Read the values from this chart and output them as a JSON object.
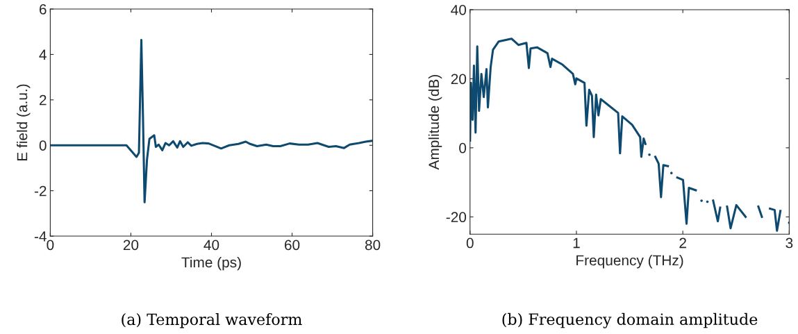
{
  "chart_data": [
    {
      "type": "line",
      "xlabel": "Time (ps)",
      "ylabel": "E field (a.u.)",
      "annotations": [
        "(a) Temporal waveform"
      ],
      "xlim": [
        0,
        80
      ],
      "ylim": [
        -4,
        6
      ],
      "xticks": [
        0,
        20,
        40,
        60,
        80
      ],
      "yticks": [
        {
          "value": -4,
          "label": "-4"
        },
        {
          "value": -2,
          "label": "-2"
        },
        0,
        2,
        4,
        6
      ],
      "grid": false,
      "series": [
        {
          "color": "#0e4a70",
          "x": [
            0,
            18.9,
            21.4,
            22.0,
            22.6,
            23.0,
            23.4,
            24.0,
            24.6,
            25.8,
            26.2,
            26.9,
            27.8,
            28.6,
            29.5,
            30.5,
            31.5,
            32.2,
            33.0,
            34.1,
            35.0,
            36.4,
            37.8,
            39.3,
            40.7,
            42.4,
            44.4,
            46.7,
            48.5,
            49.6,
            51.3,
            53.6,
            55.3,
            57.1,
            59.4,
            61.7,
            64.0,
            66.3,
            69.1,
            70.9,
            72.9,
            74.3,
            76.6,
            78.3,
            80
          ],
          "values": [
            0,
            0,
            -0.51,
            -0.33,
            4.64,
            1.3,
            -2.51,
            -0.63,
            0.28,
            0.44,
            -0.07,
            0.03,
            -0.22,
            0.1,
            0,
            0.18,
            -0.1,
            0.18,
            -0.07,
            0.13,
            -0.02,
            0.06,
            0.1,
            0.08,
            -0.02,
            -0.14,
            0,
            0.06,
            0.16,
            0.06,
            -0.04,
            0.03,
            -0.04,
            -0.04,
            0.08,
            0.03,
            0.03,
            0.1,
            -0.07,
            -0.04,
            -0.12,
            0.03,
            0.1,
            0.16,
            0.2
          ]
        }
      ]
    },
    {
      "type": "line",
      "xlabel": "Frequency (THz)",
      "ylabel": "Amplitude (dB)",
      "annotations": [
        "(b) Frequency domain amplitude"
      ],
      "xlim": [
        0,
        3
      ],
      "ylim": [
        -25,
        40
      ],
      "xticks": [
        0,
        1,
        2,
        3
      ],
      "yticks": [
        {
          "value": -20,
          "label": "-20"
        },
        0,
        20,
        40
      ],
      "grid": false,
      "series": [
        {
          "color": "#0e4a70",
          "x": [
            0,
            0.009,
            0.024,
            0.037,
            0.052,
            0.068,
            0.085,
            0.107,
            0.129,
            0.155,
            0.168,
            0.194,
            0.216,
            0.27,
            0.39,
            0.455,
            0.53,
            0.553,
            0.569,
            0.63,
            0.728,
            0.756,
            0.771,
            0.869,
            0.967,
            0.989,
            1.0,
            1.076,
            1.094,
            1.12,
            1.146,
            1.163,
            1.185,
            1.207,
            1.229,
            1.392,
            1.41,
            1.431,
            1.523,
            1.599,
            1.61,
            1.632,
            1.649,
            1.664,
            1.686,
            1.715,
            1.741,
            1.773,
            1.795,
            1.817,
            1.86,
            1.871,
            1.893,
            1.919,
            1.948,
            2.002,
            2.035,
            2.057,
            2.122,
            2.155,
            2.176,
            2.194,
            2.231,
            2.253,
            2.285,
            2.329,
            2.351,
            2.383,
            2.416,
            2.449,
            2.503,
            2.59,
            2.63,
            2.678,
            2.71,
            2.743,
            2.776,
            2.819,
            2.863,
            2.885,
            2.917,
            2.961,
            3.0
          ],
          "values": [
            2.1,
            18.8,
            8.1,
            23.8,
            4.4,
            29.4,
            10.7,
            21.4,
            14.7,
            22.8,
            11.7,
            23.4,
            28.4,
            30.8,
            31.6,
            29.8,
            30.4,
            23.1,
            28.8,
            29.1,
            27.4,
            23.4,
            25.8,
            24.1,
            21.4,
            18.4,
            20.1,
            18.8,
            6.4,
            16.8,
            15.1,
            3.1,
            15.4,
            9.4,
            14.1,
            10.1,
            -1.6,
            9.1,
            6.7,
            3.1,
            -2.6,
            2.7,
            1.1,
            null,
            -2.0,
            null,
            -2.6,
            -4.6,
            -14.3,
            -5.0,
            -5.3,
            null,
            -7.3,
            null,
            -8.6,
            -9.3,
            -22.0,
            -11.6,
            -12.3,
            null,
            -15.3,
            null,
            -15.6,
            null,
            -15.3,
            -21.3,
            -17.3,
            null,
            -17.0,
            -23.3,
            -16.6,
            -20.0,
            null,
            null,
            -17.0,
            -20,
            null,
            -17.6,
            -18.0,
            -24.0,
            -18.3,
            null,
            -21.7
          ]
        }
      ]
    }
  ]
}
